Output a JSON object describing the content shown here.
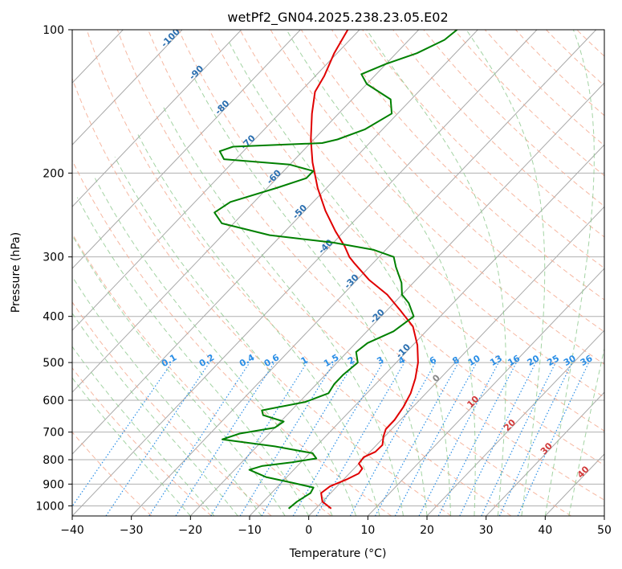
{
  "chart_data": {
    "type": "line",
    "subtype": "skew-T log-P diagram",
    "title": "wetPf2_GN04.2025.238.23.05.E02",
    "xlabel": "Temperature (°C)",
    "ylabel": "Pressure (hPa)",
    "xlim": [
      -40,
      50
    ],
    "ylim": [
      1050,
      100
    ],
    "y_scale": "log",
    "x_ticks": [
      "−40",
      "−30",
      "−20",
      "−10",
      "0",
      "10",
      "20",
      "30",
      "40",
      "50"
    ],
    "y_ticks": [
      "100",
      "200",
      "300",
      "400",
      "500",
      "600",
      "700",
      "800",
      "900",
      "1000"
    ],
    "grid": true,
    "colors": {
      "temperature": "#e00000",
      "dewpoint": "#008000",
      "isotherm": "#a8a8a8",
      "dry_adiabat": "#f4a58a",
      "moist_adiabat": "#8cc88c",
      "mixing_ratio": "#2a8ee6",
      "isobar_grid": "#b0b0b0"
    },
    "series": [
      {
        "name": "temperature",
        "color": "#e00000",
        "points": [
          {
            "p": 1013,
            "t": 2.6
          },
          {
            "p": 980,
            "t": 0.0
          },
          {
            "p": 940,
            "t": -1.6
          },
          {
            "p": 910,
            "t": -1.2
          },
          {
            "p": 880,
            "t": 0.5
          },
          {
            "p": 855,
            "t": 1.6
          },
          {
            "p": 835,
            "t": 1.4
          },
          {
            "p": 815,
            "t": 0.0
          },
          {
            "p": 790,
            "t": -0.2
          },
          {
            "p": 770,
            "t": 0.9
          },
          {
            "p": 745,
            "t": 1.0
          },
          {
            "p": 715,
            "t": -0.2
          },
          {
            "p": 690,
            "t": -1.0
          },
          {
            "p": 660,
            "t": -1.0
          },
          {
            "p": 620,
            "t": -1.6
          },
          {
            "p": 580,
            "t": -2.6
          },
          {
            "p": 540,
            "t": -4.2
          },
          {
            "p": 500,
            "t": -6.3
          },
          {
            "p": 460,
            "t": -9.2
          },
          {
            "p": 420,
            "t": -13.0
          },
          {
            "p": 390,
            "t": -17.5
          },
          {
            "p": 360,
            "t": -22.5
          },
          {
            "p": 335,
            "t": -28.0
          },
          {
            "p": 310,
            "t": -33.0
          },
          {
            "p": 300,
            "t": -35.0
          },
          {
            "p": 285,
            "t": -37.5
          },
          {
            "p": 265,
            "t": -41.5
          },
          {
            "p": 240,
            "t": -46.5
          },
          {
            "p": 215,
            "t": -51.5
          },
          {
            "p": 190,
            "t": -56.5
          },
          {
            "p": 170,
            "t": -60.5
          },
          {
            "p": 150,
            "t": -64.5
          },
          {
            "p": 135,
            "t": -67.5
          },
          {
            "p": 125,
            "t": -68.5
          },
          {
            "p": 112,
            "t": -70.5
          },
          {
            "p": 100,
            "t": -72.0
          }
        ]
      },
      {
        "name": "dewpoint",
        "color": "#008000",
        "points": [
          {
            "p": 1013,
            "t": -4.6
          },
          {
            "p": 980,
            "t": -4.3
          },
          {
            "p": 940,
            "t": -3.4
          },
          {
            "p": 915,
            "t": -3.8
          },
          {
            "p": 895,
            "t": -8.0
          },
          {
            "p": 870,
            "t": -13.5
          },
          {
            "p": 840,
            "t": -17.5
          },
          {
            "p": 825,
            "t": -16.0
          },
          {
            "p": 810,
            "t": -11.5
          },
          {
            "p": 795,
            "t": -8.0
          },
          {
            "p": 775,
            "t": -9.5
          },
          {
            "p": 750,
            "t": -17.0
          },
          {
            "p": 725,
            "t": -27.0
          },
          {
            "p": 705,
            "t": -25.0
          },
          {
            "p": 685,
            "t": -20.0
          },
          {
            "p": 665,
            "t": -19.5
          },
          {
            "p": 645,
            "t": -24.0
          },
          {
            "p": 630,
            "t": -25.0
          },
          {
            "p": 605,
            "t": -19.0
          },
          {
            "p": 580,
            "t": -16.5
          },
          {
            "p": 555,
            "t": -17.0
          },
          {
            "p": 530,
            "t": -17.0
          },
          {
            "p": 500,
            "t": -16.5
          },
          {
            "p": 475,
            "t": -18.5
          },
          {
            "p": 455,
            "t": -18.0
          },
          {
            "p": 430,
            "t": -15.5
          },
          {
            "p": 400,
            "t": -14.5
          },
          {
            "p": 375,
            "t": -17.5
          },
          {
            "p": 360,
            "t": -20.0
          },
          {
            "p": 340,
            "t": -22.0
          },
          {
            "p": 315,
            "t": -25.5
          },
          {
            "p": 300,
            "t": -27.5
          },
          {
            "p": 290,
            "t": -32.0
          },
          {
            "p": 280,
            "t": -40.0
          },
          {
            "p": 270,
            "t": -52.0
          },
          {
            "p": 255,
            "t": -62.0
          },
          {
            "p": 242,
            "t": -65.0
          },
          {
            "p": 230,
            "t": -64.0
          },
          {
            "p": 215,
            "t": -58.5
          },
          {
            "p": 205,
            "t": -55.0
          },
          {
            "p": 198,
            "t": -55.0
          },
          {
            "p": 192,
            "t": -60.0
          },
          {
            "p": 187,
            "t": -72.0
          },
          {
            "p": 180,
            "t": -74.0
          },
          {
            "p": 176,
            "t": -72.5
          },
          {
            "p": 173,
            "t": -58.0
          },
          {
            "p": 170,
            "t": -56.0
          },
          {
            "p": 162,
            "t": -53.0
          },
          {
            "p": 150,
            "t": -51.0
          },
          {
            "p": 140,
            "t": -53.5
          },
          {
            "p": 130,
            "t": -60.0
          },
          {
            "p": 124,
            "t": -62.5
          },
          {
            "p": 118,
            "t": -60.0
          },
          {
            "p": 112,
            "t": -56.5
          },
          {
            "p": 105,
            "t": -54.0
          },
          {
            "p": 100,
            "t": -53.5
          }
        ]
      }
    ],
    "mixing_ratio_labels": [
      "0.1",
      "0.2",
      "0.4",
      "0.6",
      "1",
      "1.5",
      "2",
      "3",
      "4",
      "6",
      "8",
      "10",
      "13",
      "16",
      "20",
      "25",
      "30",
      "36"
    ],
    "mixing_ratio_values": [
      0.1,
      0.2,
      0.4,
      0.6,
      1,
      1.5,
      2,
      3,
      4,
      6,
      8,
      10,
      13,
      16,
      20,
      25,
      30,
      36
    ],
    "dry_adiabat_labels": [
      "-100",
      "-90",
      "-80",
      "-70",
      "-60",
      "-50",
      "-40",
      "-30",
      "-20",
      "-10"
    ],
    "moist_adiabat_labels": [
      "0",
      "10",
      "20",
      "30",
      "40"
    ]
  }
}
